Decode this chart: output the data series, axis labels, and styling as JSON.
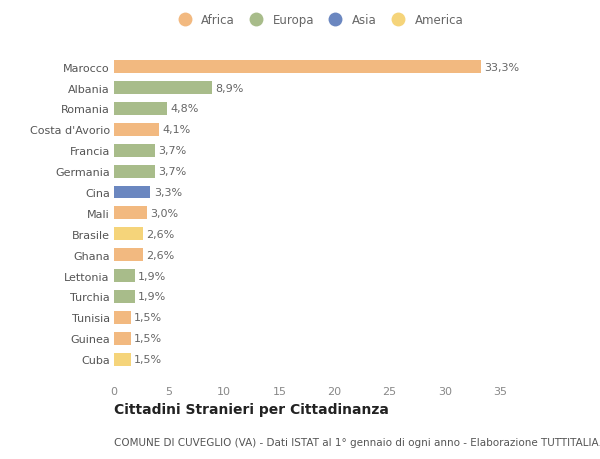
{
  "countries": [
    "Marocco",
    "Albania",
    "Romania",
    "Costa d'Avorio",
    "Francia",
    "Germania",
    "Cina",
    "Mali",
    "Brasile",
    "Ghana",
    "Lettonia",
    "Turchia",
    "Tunisia",
    "Guinea",
    "Cuba"
  ],
  "values": [
    33.3,
    8.9,
    4.8,
    4.1,
    3.7,
    3.7,
    3.3,
    3.0,
    2.6,
    2.6,
    1.9,
    1.9,
    1.5,
    1.5,
    1.5
  ],
  "labels": [
    "33,3%",
    "8,9%",
    "4,8%",
    "4,1%",
    "3,7%",
    "3,7%",
    "3,3%",
    "3,0%",
    "2,6%",
    "2,6%",
    "1,9%",
    "1,9%",
    "1,5%",
    "1,5%",
    "1,5%"
  ],
  "colors": [
    "#F2B980",
    "#A8BC8A",
    "#A8BC8A",
    "#F2B980",
    "#A8BC8A",
    "#A8BC8A",
    "#6B87C0",
    "#F2B980",
    "#F5D47A",
    "#F2B980",
    "#A8BC8A",
    "#A8BC8A",
    "#F2B980",
    "#F2B980",
    "#F5D47A"
  ],
  "continents": [
    "Africa",
    "Europa",
    "Asia",
    "America"
  ],
  "legend_colors": [
    "#F2B980",
    "#A8BC8A",
    "#6B87C0",
    "#F5D47A"
  ],
  "title1": "Cittadini Stranieri per Cittadinanza",
  "title2": "COMUNE DI CUVEGLIO (VA) - Dati ISTAT al 1° gennaio di ogni anno - Elaborazione TUTTITALIA.IT",
  "xlim": [
    0,
    37
  ],
  "xticks": [
    0,
    5,
    10,
    15,
    20,
    25,
    30,
    35
  ],
  "bg_color": "#ffffff",
  "bar_height": 0.62,
  "label_fontsize": 8.0,
  "tick_fontsize": 8.0,
  "ytick_fontsize": 8.0,
  "title1_fontsize": 10,
  "title2_fontsize": 7.5
}
